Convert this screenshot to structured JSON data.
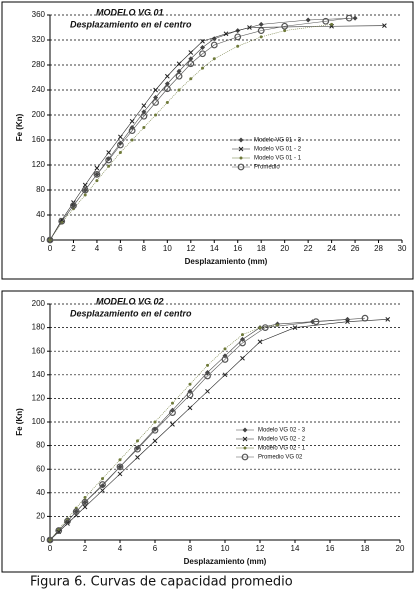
{
  "chart_data": [
    {
      "type": "scatter",
      "title": "MODELO VG 01",
      "subtitle": "Desplazamiento en el centro",
      "x_label": "Desplazamiento (mm)",
      "y_label": "Fe (Kn)",
      "xlim": [
        0,
        30
      ],
      "xticks": [
        0,
        2,
        4,
        6,
        8,
        10,
        12,
        14,
        16,
        18,
        20,
        22,
        24,
        26,
        28,
        30
      ],
      "ylim": [
        0,
        360
      ],
      "yticks": [
        0,
        40,
        80,
        120,
        160,
        200,
        240,
        280,
        320,
        360
      ],
      "grid": true,
      "legend": "right",
      "series": [
        {
          "name": "Modelo VG 01 - 3",
          "color": "#444444",
          "marker": "diamond",
          "x": [
            0,
            1,
            2,
            3,
            4,
            5,
            6,
            7,
            8,
            9,
            10,
            11,
            12,
            13,
            14,
            16,
            18,
            22,
            26
          ],
          "values": [
            0,
            30,
            55,
            80,
            105,
            130,
            155,
            180,
            205,
            228,
            250,
            270,
            290,
            308,
            322,
            335,
            345,
            352,
            355
          ]
        },
        {
          "name": "Modelo VG 01 - 2",
          "color": "#222222",
          "marker": "x",
          "x": [
            0,
            1,
            2,
            3,
            4,
            5,
            6,
            7,
            8,
            9,
            10,
            11,
            12,
            13,
            15,
            17,
            24,
            28.5
          ],
          "values": [
            0,
            32,
            60,
            88,
            115,
            140,
            165,
            190,
            215,
            240,
            262,
            282,
            300,
            318,
            330,
            340,
            342,
            343
          ]
        },
        {
          "name": "Modelo VG 01 - 1",
          "color": "#6f7a3a",
          "marker": "dot",
          "x": [
            0,
            1,
            2,
            3,
            4,
            5,
            6,
            7,
            8,
            9,
            10,
            11,
            12,
            13,
            14,
            16,
            18,
            20,
            24
          ],
          "values": [
            0,
            28,
            50,
            72,
            95,
            118,
            140,
            160,
            180,
            200,
            220,
            240,
            258,
            275,
            290,
            310,
            325,
            335,
            345
          ]
        },
        {
          "name": "Promedio",
          "color": "#555555",
          "marker": "circle",
          "x": [
            0,
            1,
            2,
            3,
            4,
            5,
            6,
            7,
            8,
            9,
            10,
            11,
            12,
            13,
            14,
            16,
            18,
            20,
            23.5,
            25.5
          ],
          "values": [
            0,
            30,
            55,
            80,
            105,
            128,
            152,
            175,
            198,
            220,
            242,
            262,
            282,
            298,
            312,
            325,
            335,
            342,
            350,
            355
          ]
        }
      ]
    },
    {
      "type": "scatter",
      "title": "MODELO VG 02",
      "subtitle": "Desplazamiento en el centro",
      "x_label": "Desplazamiento (mm)",
      "y_label": "Fe (Kn)",
      "xlim": [
        0,
        20
      ],
      "xticks": [
        0,
        2,
        4,
        6,
        8,
        10,
        12,
        14,
        16,
        18,
        20
      ],
      "ylim": [
        0,
        200
      ],
      "yticks": [
        0,
        20,
        40,
        60,
        80,
        100,
        120,
        140,
        160,
        180,
        200
      ],
      "grid": true,
      "legend": "right",
      "series": [
        {
          "name": "Modelo VG 02 - 3",
          "color": "#444444",
          "marker": "diamond",
          "x": [
            0,
            0.5,
            1,
            1.5,
            2,
            3,
            4,
            5,
            6,
            7,
            8,
            9,
            10,
            11,
            12,
            13,
            15,
            17
          ],
          "values": [
            0,
            8,
            16,
            24,
            32,
            46,
            62,
            78,
            94,
            110,
            126,
            142,
            156,
            170,
            180,
            183,
            185,
            187
          ]
        },
        {
          "name": "Modelo VG 02 - 2",
          "color": "#222222",
          "marker": "x",
          "x": [
            0,
            0.5,
            1,
            1.5,
            2,
            3,
            4,
            5,
            6,
            7,
            8,
            9,
            10,
            11,
            12,
            14,
            17,
            19.3
          ],
          "values": [
            0,
            7,
            14,
            21,
            28,
            42,
            56,
            70,
            84,
            98,
            112,
            126,
            140,
            154,
            168,
            180,
            185,
            187
          ]
        },
        {
          "name": "Modelo VG 02 - 1",
          "color": "#6f7a3a",
          "marker": "dot",
          "x": [
            0,
            0.5,
            1,
            1.5,
            2,
            3,
            4,
            5,
            6,
            7,
            8,
            9,
            10,
            11,
            12,
            13
          ],
          "values": [
            0,
            9,
            18,
            27,
            36,
            52,
            68,
            84,
            100,
            116,
            132,
            148,
            162,
            174,
            180,
            182
          ]
        },
        {
          "name": "Promedio VG 02",
          "color": "#555555",
          "marker": "circle",
          "x": [
            0,
            0.5,
            1,
            1.5,
            2,
            3,
            4,
            5,
            6,
            7,
            8,
            9,
            10,
            11,
            12.3,
            15.2,
            18
          ],
          "values": [
            0,
            8,
            16,
            24,
            32,
            47,
            62,
            77,
            93,
            108,
            123,
            139,
            153,
            167,
            180,
            185,
            188
          ]
        }
      ]
    }
  ],
  "caption": "Figura 6. Curvas de capacidad promedio"
}
